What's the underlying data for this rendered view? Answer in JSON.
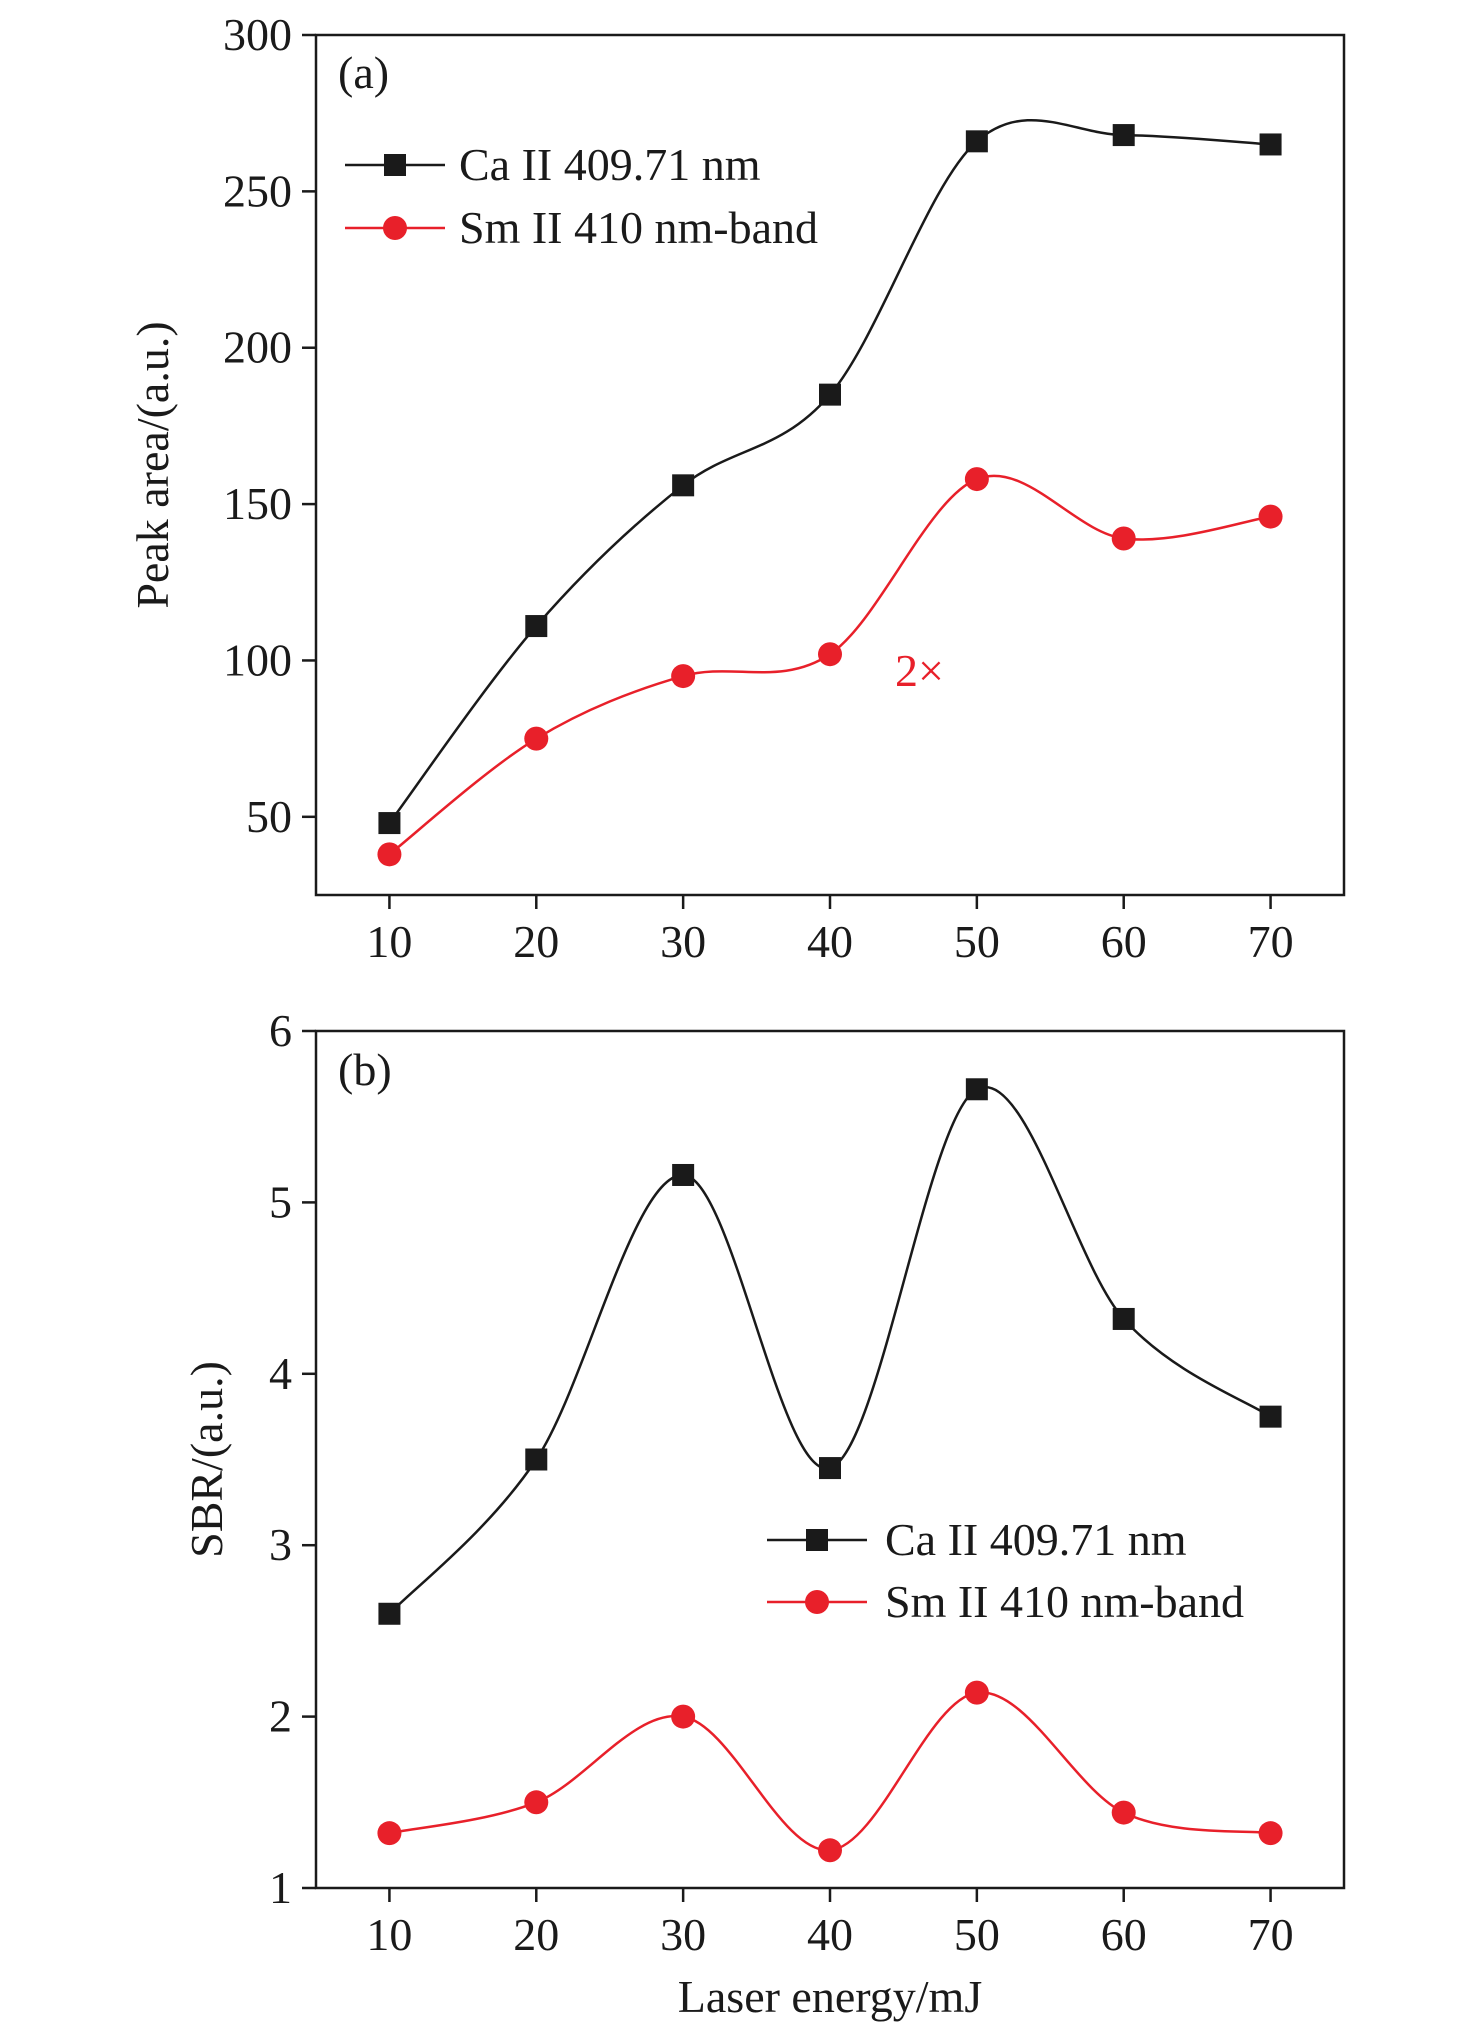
{
  "chart_data": [
    {
      "type": "line",
      "panel_label": "(a)",
      "xlabel": "",
      "ylabel": "Peak area/(a.u.)",
      "x": [
        10,
        20,
        30,
        40,
        50,
        60,
        70
      ],
      "xlim": [
        5,
        75
      ],
      "ylim": [
        25,
        300
      ],
      "xticks": [
        10,
        20,
        30,
        40,
        50,
        60,
        70
      ],
      "yticks": [
        50,
        100,
        150,
        200,
        250,
        300
      ],
      "grid": false,
      "legend_placement": "top-left",
      "annotation": "2×",
      "annotation_color": "#e8202a",
      "series": [
        {
          "name": "Ca II 409.71 nm",
          "marker": "square",
          "color": "#1a1a1a",
          "values": [
            48,
            111,
            156,
            185,
            266,
            268,
            265
          ]
        },
        {
          "name": "Sm II 410 nm-band",
          "marker": "circle",
          "color": "#e8202a",
          "values": [
            38,
            75,
            95,
            102,
            158,
            139,
            146
          ]
        }
      ]
    },
    {
      "type": "line",
      "panel_label": "(b)",
      "xlabel": "Laser energy/mJ",
      "ylabel": "SBR/(a.u.)",
      "x": [
        10,
        20,
        30,
        40,
        50,
        60,
        70
      ],
      "xlim": [
        5,
        75
      ],
      "ylim": [
        1,
        6
      ],
      "xticks": [
        10,
        20,
        30,
        40,
        50,
        60,
        70
      ],
      "yticks": [
        1,
        2,
        3,
        4,
        5,
        6
      ],
      "grid": false,
      "legend_placement": "center-right",
      "series": [
        {
          "name": "Ca II 409.71 nm",
          "marker": "square",
          "color": "#1a1a1a",
          "values": [
            2.6,
            3.5,
            5.16,
            3.45,
            5.66,
            4.32,
            3.75
          ]
        },
        {
          "name": "Sm II 410 nm-band",
          "marker": "circle",
          "color": "#e8202a",
          "values": [
            1.32,
            1.5,
            2.0,
            1.22,
            2.14,
            1.44,
            1.32
          ]
        }
      ]
    }
  ]
}
